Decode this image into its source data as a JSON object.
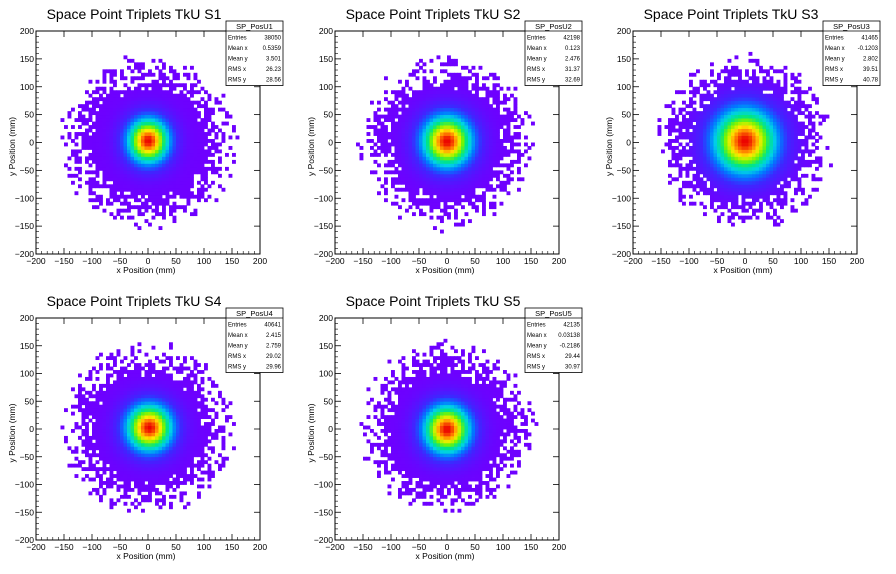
{
  "chart_data": [
    {
      "type": "heatmap",
      "title": "Space Point Triplets TkU S1",
      "xlabel": "x Position (mm)",
      "ylabel": "y Position (mm)",
      "xlim": [
        -200,
        200
      ],
      "ylim": [
        -200,
        200
      ],
      "xticks": [
        "−200",
        "−150",
        "−100",
        "−50",
        "0",
        "50",
        "100",
        "150",
        "200"
      ],
      "yticks": [
        "−200",
        "−150",
        "−100",
        "−50",
        "0",
        "50",
        "100",
        "150",
        "200"
      ],
      "stats": {
        "name": "SP_PosU1",
        "rows": [
          {
            "label": "Entries",
            "value": "38050"
          },
          {
            "label": "Mean x",
            "value": "0.5359"
          },
          {
            "label": "Mean y",
            "value": "3.501"
          },
          {
            "label": "RMS x",
            "value": "26.23"
          },
          {
            "label": "RMS y",
            "value": "28.56"
          }
        ]
      },
      "entries": 38050,
      "mean_x": 0.5359,
      "mean_y": 3.501,
      "rms_x": 26.23,
      "rms_y": 28.56,
      "peak": [
        0,
        2
      ]
    },
    {
      "type": "heatmap",
      "title": "Space Point Triplets TkU S2",
      "xlabel": "x Position (mm)",
      "ylabel": "y Position (mm)",
      "xlim": [
        -200,
        200
      ],
      "ylim": [
        -200,
        200
      ],
      "xticks": [
        "−200",
        "−150",
        "−100",
        "−50",
        "0",
        "50",
        "100",
        "150",
        "200"
      ],
      "yticks": [
        "−200",
        "−150",
        "−100",
        "−50",
        "0",
        "50",
        "100",
        "150",
        "200"
      ],
      "stats": {
        "name": "SP_PosU2",
        "rows": [
          {
            "label": "Entries",
            "value": "42198"
          },
          {
            "label": "Mean x",
            "value": "0.123"
          },
          {
            "label": "Mean y",
            "value": "2.476"
          },
          {
            "label": "RMS x",
            "value": "31.37"
          },
          {
            "label": "RMS y",
            "value": "32.69"
          }
        ]
      },
      "entries": 42198,
      "mean_x": 0.123,
      "mean_y": 2.476,
      "rms_x": 31.37,
      "rms_y": 32.69,
      "peak": [
        0,
        0
      ]
    },
    {
      "type": "heatmap",
      "title": "Space Point Triplets TkU S3",
      "xlabel": "x Position (mm)",
      "ylabel": "y Position (mm)",
      "xlim": [
        -200,
        200
      ],
      "ylim": [
        -200,
        200
      ],
      "xticks": [
        "−200",
        "−150",
        "−100",
        "−50",
        "0",
        "50",
        "100",
        "150",
        "200"
      ],
      "yticks": [
        "−200",
        "−150",
        "−100",
        "−50",
        "0",
        "50",
        "100",
        "150",
        "200"
      ],
      "stats": {
        "name": "SP_PosU3",
        "rows": [
          {
            "label": "Entries",
            "value": "41465"
          },
          {
            "label": "Mean x",
            "value": "-0.1203"
          },
          {
            "label": "Mean y",
            "value": "2.802"
          },
          {
            "label": "RMS x",
            "value": "39.51"
          },
          {
            "label": "RMS y",
            "value": "40.78"
          }
        ]
      },
      "entries": 41465,
      "mean_x": -0.1203,
      "mean_y": 2.802,
      "rms_x": 39.51,
      "rms_y": 40.78,
      "peak": [
        0,
        0
      ]
    },
    {
      "type": "heatmap",
      "title": "Space Point Triplets TkU S4",
      "xlabel": "x Position (mm)",
      "ylabel": "y Position (mm)",
      "xlim": [
        -200,
        200
      ],
      "ylim": [
        -200,
        200
      ],
      "xticks": [
        "−200",
        "−150",
        "−100",
        "−50",
        "0",
        "50",
        "100",
        "150",
        "200"
      ],
      "yticks": [
        "−200",
        "−150",
        "−100",
        "−50",
        "0",
        "50",
        "100",
        "150",
        "200"
      ],
      "stats": {
        "name": "SP_PosU4",
        "rows": [
          {
            "label": "Entries",
            "value": "40641"
          },
          {
            "label": "Mean x",
            "value": "2.415"
          },
          {
            "label": "Mean y",
            "value": "2.759"
          },
          {
            "label": "RMS x",
            "value": "29.02"
          },
          {
            "label": "RMS y",
            "value": "29.96"
          }
        ]
      },
      "entries": 40641,
      "mean_x": 2.415,
      "mean_y": 2.759,
      "rms_x": 29.02,
      "rms_y": 29.96,
      "peak": [
        0,
        0
      ]
    },
    {
      "type": "heatmap",
      "title": "Space Point Triplets TkU S5",
      "xlabel": "x Position (mm)",
      "ylabel": "y Position (mm)",
      "xlim": [
        -200,
        200
      ],
      "ylim": [
        -200,
        200
      ],
      "xticks": [
        "−200",
        "−150",
        "−100",
        "−50",
        "0",
        "50",
        "100",
        "150",
        "200"
      ],
      "yticks": [
        "−200",
        "−150",
        "−100",
        "−50",
        "0",
        "50",
        "100",
        "150",
        "200"
      ],
      "stats": {
        "name": "SP_PosU5",
        "rows": [
          {
            "label": "Entries",
            "value": "42135"
          },
          {
            "label": "Mean x",
            "value": "0.03138"
          },
          {
            "label": "Mean y",
            "value": "-0.2186"
          },
          {
            "label": "RMS x",
            "value": "29.44"
          },
          {
            "label": "RMS y",
            "value": "30.97"
          }
        ]
      },
      "entries": 42135,
      "mean_x": 0.03138,
      "mean_y": -0.2186,
      "rms_x": 29.44,
      "rms_y": 30.97,
      "peak": [
        0,
        0
      ]
    }
  ]
}
